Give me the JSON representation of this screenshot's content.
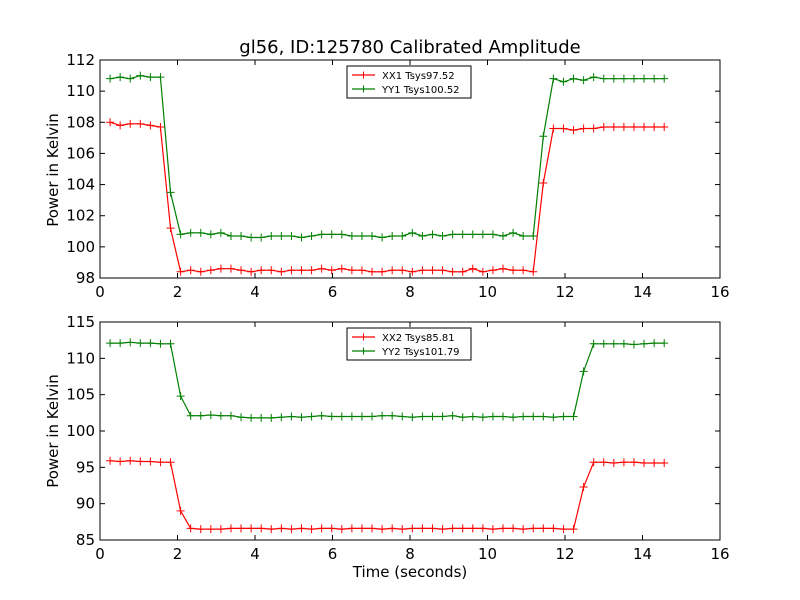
{
  "chart_data": [
    {
      "type": "line",
      "title": "gl56, ID:125780 Calibrated Amplitude",
      "xlabel": "",
      "ylabel": "Power in Kelvin",
      "xlim": [
        0,
        16
      ],
      "ylim": [
        98,
        112
      ],
      "xticks": [
        "0",
        "2",
        "4",
        "6",
        "8",
        "10",
        "12",
        "14",
        "16"
      ],
      "yticks": [
        "98",
        "100",
        "102",
        "104",
        "106",
        "108",
        "110",
        "112"
      ],
      "grid": false,
      "legend_position": "top-center",
      "x": [
        0.26,
        0.52,
        0.78,
        1.04,
        1.3,
        1.56,
        1.82,
        2.08,
        2.34,
        2.6,
        2.86,
        3.12,
        3.38,
        3.64,
        3.9,
        4.16,
        4.42,
        4.68,
        4.94,
        5.2,
        5.46,
        5.72,
        5.98,
        6.24,
        6.5,
        6.76,
        7.02,
        7.28,
        7.54,
        7.8,
        8.06,
        8.32,
        8.58,
        8.84,
        9.1,
        9.36,
        9.62,
        9.88,
        10.14,
        10.4,
        10.66,
        10.92,
        11.18,
        11.44,
        11.7,
        11.96,
        12.22,
        12.48,
        12.74,
        13.0,
        13.26,
        13.52,
        13.78,
        14.04,
        14.3,
        14.56
      ],
      "series": [
        {
          "name": "XX1 Tsys97.52",
          "color": "#ff0000",
          "values": [
            108.0,
            107.8,
            107.9,
            107.9,
            107.8,
            107.7,
            101.2,
            98.4,
            98.5,
            98.4,
            98.5,
            98.6,
            98.6,
            98.5,
            98.4,
            98.5,
            98.5,
            98.4,
            98.5,
            98.5,
            98.5,
            98.6,
            98.5,
            98.6,
            98.5,
            98.5,
            98.4,
            98.4,
            98.5,
            98.5,
            98.4,
            98.5,
            98.5,
            98.5,
            98.4,
            98.4,
            98.6,
            98.4,
            98.5,
            98.6,
            98.5,
            98.5,
            98.4,
            104.1,
            107.6,
            107.6,
            107.5,
            107.6,
            107.6,
            107.7,
            107.7,
            107.7,
            107.7,
            107.7,
            107.7,
            107.7
          ]
        },
        {
          "name": "YY1 Tsys100.52",
          "color": "#008000",
          "values": [
            110.8,
            110.9,
            110.8,
            111.0,
            110.9,
            110.9,
            103.5,
            100.8,
            100.9,
            100.9,
            100.8,
            100.9,
            100.7,
            100.7,
            100.6,
            100.6,
            100.7,
            100.7,
            100.7,
            100.6,
            100.7,
            100.8,
            100.8,
            100.8,
            100.7,
            100.7,
            100.7,
            100.6,
            100.7,
            100.7,
            100.9,
            100.7,
            100.8,
            100.7,
            100.8,
            100.8,
            100.8,
            100.8,
            100.8,
            100.7,
            100.9,
            100.7,
            100.7,
            107.1,
            110.8,
            110.6,
            110.8,
            110.7,
            110.9,
            110.8,
            110.8,
            110.8,
            110.8,
            110.8,
            110.8,
            110.8
          ]
        }
      ]
    },
    {
      "type": "line",
      "title": "",
      "xlabel": "Time (seconds)",
      "ylabel": "Power in Kelvin",
      "xlim": [
        0,
        16
      ],
      "ylim": [
        85,
        115
      ],
      "xticks": [
        "0",
        "2",
        "4",
        "6",
        "8",
        "10",
        "12",
        "14",
        "16"
      ],
      "yticks": [
        "85",
        "90",
        "95",
        "100",
        "105",
        "110",
        "115"
      ],
      "grid": false,
      "legend_position": "top-center",
      "x": [
        0.26,
        0.52,
        0.78,
        1.04,
        1.3,
        1.56,
        1.82,
        2.08,
        2.34,
        2.6,
        2.86,
        3.12,
        3.38,
        3.64,
        3.9,
        4.16,
        4.42,
        4.68,
        4.94,
        5.2,
        5.46,
        5.72,
        5.98,
        6.24,
        6.5,
        6.76,
        7.02,
        7.28,
        7.54,
        7.8,
        8.06,
        8.32,
        8.58,
        8.84,
        9.1,
        9.36,
        9.62,
        9.88,
        10.14,
        10.4,
        10.66,
        10.92,
        11.18,
        11.44,
        11.7,
        11.96,
        12.22,
        12.48,
        12.74,
        13.0,
        13.26,
        13.52,
        13.78,
        14.04,
        14.3,
        14.56
      ],
      "series": [
        {
          "name": "XX2 Tsys85.81",
          "color": "#ff0000",
          "values": [
            95.9,
            95.8,
            95.9,
            95.8,
            95.8,
            95.7,
            95.7,
            89.0,
            86.6,
            86.5,
            86.5,
            86.5,
            86.6,
            86.6,
            86.6,
            86.6,
            86.5,
            86.6,
            86.5,
            86.6,
            86.5,
            86.6,
            86.6,
            86.5,
            86.6,
            86.6,
            86.6,
            86.5,
            86.6,
            86.5,
            86.6,
            86.6,
            86.6,
            86.5,
            86.6,
            86.6,
            86.6,
            86.6,
            86.5,
            86.6,
            86.6,
            86.5,
            86.6,
            86.6,
            86.6,
            86.5,
            86.5,
            92.3,
            95.7,
            95.7,
            95.6,
            95.7,
            95.7,
            95.6,
            95.6,
            95.6
          ]
        },
        {
          "name": "YY2 Tsys101.79",
          "color": "#008000",
          "values": [
            112.1,
            112.1,
            112.2,
            112.1,
            112.1,
            112.0,
            112.0,
            104.8,
            102.1,
            102.1,
            102.2,
            102.1,
            102.1,
            101.9,
            101.8,
            101.8,
            101.8,
            101.9,
            102.0,
            101.9,
            102.0,
            102.1,
            102.0,
            102.0,
            102.0,
            102.0,
            102.0,
            102.1,
            102.1,
            102.0,
            101.9,
            102.0,
            102.0,
            102.0,
            102.1,
            101.9,
            102.0,
            101.9,
            102.0,
            102.0,
            101.9,
            102.0,
            102.0,
            102.0,
            101.9,
            102.0,
            102.0,
            108.2,
            112.0,
            112.0,
            112.0,
            112.0,
            111.9,
            112.0,
            112.1,
            112.1
          ]
        }
      ]
    }
  ]
}
